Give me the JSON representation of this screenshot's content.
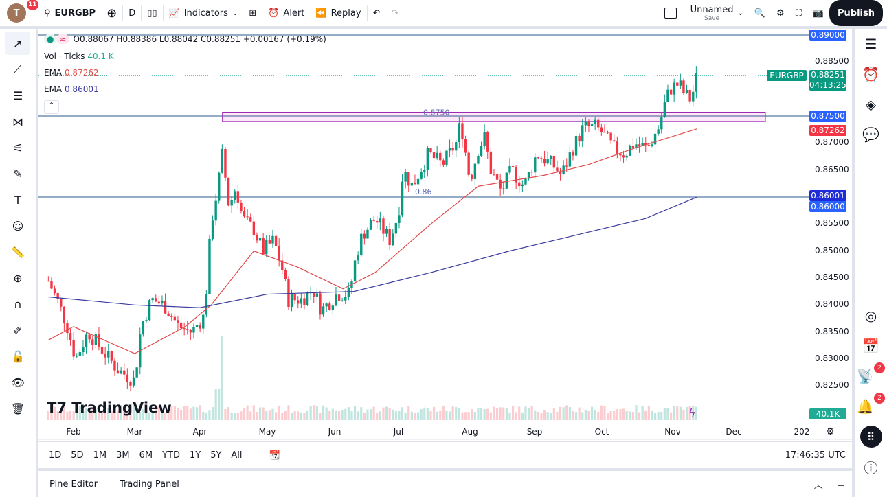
{
  "header": {
    "avatar_letter": "T",
    "notifications": "11",
    "symbol": "EURGBP",
    "interval": "D",
    "indicators": "Indicators",
    "alert": "Alert",
    "replay": "Replay",
    "layout_name": "Unnamed",
    "layout_save": "Save",
    "publish": "Publish"
  },
  "legend": {
    "ohlc": "O0.88067 H0.88386 L0.88042 C0.88251 +0.00167 (+0.19%)",
    "vol_label": "Vol · Ticks",
    "vol_value": "40.1 K",
    "ema1_label": "EMA",
    "ema1_value": "0.87262",
    "ema2_label": "EMA",
    "ema2_value": "0.86001"
  },
  "price_axis": {
    "ticks": [
      "0.88500",
      "0.87000",
      "0.86500",
      "0.85500",
      "0.85000",
      "0.84500",
      "0.84000",
      "0.83500",
      "0.83000",
      "0.82500"
    ],
    "labels": {
      "line_top": "0.89000",
      "symbol": "EURGBP",
      "last": "0.88251",
      "countdown": "04:13:25",
      "line_mid": "0.87500",
      "ema1": "0.87262",
      "ema2": "0.86001",
      "line_low": "0.86000",
      "volume": "40.1K"
    }
  },
  "annotations": {
    "rect_label": "0.8750",
    "line_label": "0.86"
  },
  "time_axis": {
    "labels": [
      "Feb",
      "Mar",
      "Apr",
      "May",
      "Jun",
      "Jul",
      "Aug",
      "Sep",
      "Oct",
      "Nov",
      "Dec",
      "202"
    ]
  },
  "range_bar": {
    "items": [
      "1D",
      "5D",
      "1M",
      "3M",
      "6M",
      "YTD",
      "1Y",
      "5Y",
      "All"
    ],
    "clock": "17:46:35 UTC"
  },
  "bottom_panel": {
    "pine": "Pine Editor",
    "trading": "Trading Panel"
  },
  "right_sidebar": {
    "ideas_badge": "2",
    "alerts_badge": "2"
  },
  "logo": "TradingView",
  "colors": {
    "up": "#089981",
    "down": "#f23645",
    "ema_fast": "#e04a4a",
    "ema_slow": "#3b3b9e",
    "hline": "#2a5a8a",
    "accent": "#2962ff"
  },
  "chart_data": {
    "type": "candlestick",
    "symbol": "EURGBP",
    "interval": "D",
    "ylim": [
      0.8225,
      0.8915
    ],
    "closes": [
      [
        "01-16",
        0.8445
      ],
      [
        "01-23",
        0.84
      ],
      [
        "01-28",
        0.836
      ],
      [
        "02-02",
        0.83
      ],
      [
        "02-08",
        0.835
      ],
      [
        "02-14",
        0.832
      ],
      [
        "02-22",
        0.828
      ],
      [
        "03-01",
        0.826
      ],
      [
        "03-04",
        0.836
      ],
      [
        "03-09",
        0.841
      ],
      [
        "03-15",
        0.84
      ],
      [
        "03-22",
        0.836
      ],
      [
        "03-28",
        0.835
      ],
      [
        "04-03",
        0.838
      ],
      [
        "04-06",
        0.855
      ],
      [
        "04-09",
        0.862
      ],
      [
        "04-11",
        0.868
      ],
      [
        "04-14",
        0.858
      ],
      [
        "04-17",
        0.862
      ],
      [
        "04-20",
        0.856
      ],
      [
        "04-25",
        0.854
      ],
      [
        "04-29",
        0.85
      ],
      [
        "05-04",
        0.852
      ],
      [
        "05-09",
        0.845
      ],
      [
        "05-10",
        0.841
      ],
      [
        "05-17",
        0.841
      ],
      [
        "05-22",
        0.843
      ],
      [
        "05-26",
        0.839
      ],
      [
        "06-02",
        0.842
      ],
      [
        "06-08",
        0.842
      ],
      [
        "06-11",
        0.849
      ],
      [
        "06-14",
        0.853
      ],
      [
        "06-20",
        0.856
      ],
      [
        "06-27",
        0.852
      ],
      [
        "07-01",
        0.857
      ],
      [
        "07-03",
        0.865
      ],
      [
        "07-07",
        0.862
      ],
      [
        "07-14",
        0.868
      ],
      [
        "07-20",
        0.866
      ],
      [
        "07-26",
        0.87
      ],
      [
        "07-28",
        0.874
      ],
      [
        "08-01",
        0.863
      ],
      [
        "08-05",
        0.869
      ],
      [
        "08-08",
        0.871
      ],
      [
        "08-11",
        0.865
      ],
      [
        "08-16",
        0.861
      ],
      [
        "08-21",
        0.865
      ],
      [
        "08-27",
        0.862
      ],
      [
        "09-02",
        0.868
      ],
      [
        "09-09",
        0.866
      ],
      [
        "09-13",
        0.864
      ],
      [
        "09-18",
        0.869
      ],
      [
        "09-23",
        0.873
      ],
      [
        "09-28",
        0.873
      ],
      [
        "10-01",
        0.872
      ],
      [
        "10-06",
        0.869
      ],
      [
        "10-11",
        0.868
      ],
      [
        "10-15",
        0.87
      ],
      [
        "10-21",
        0.869
      ],
      [
        "10-26",
        0.873
      ],
      [
        "10-29",
        0.878
      ],
      [
        "10-31",
        0.88
      ],
      [
        "11-04",
        0.881
      ],
      [
        "11-07",
        0.879
      ],
      [
        "11-10",
        0.878
      ],
      [
        "11-13",
        0.88251
      ]
    ],
    "ema_fast": [
      [
        "01-16",
        0.8335
      ],
      [
        "02-01",
        0.836
      ],
      [
        "03-01",
        0.831
      ],
      [
        "03-25",
        0.836
      ],
      [
        "04-06",
        0.84
      ],
      [
        "04-25",
        0.85
      ],
      [
        "05-15",
        0.847
      ],
      [
        "06-05",
        0.843
      ],
      [
        "06-20",
        0.846
      ],
      [
        "07-15",
        0.855
      ],
      [
        "08-05",
        0.862
      ],
      [
        "09-05",
        0.864
      ],
      [
        "09-25",
        0.866
      ],
      [
        "10-15",
        0.869
      ],
      [
        "11-13",
        0.87262
      ]
    ],
    "ema_slow": [
      [
        "01-16",
        0.8415
      ],
      [
        "03-01",
        0.84
      ],
      [
        "04-01",
        0.8395
      ],
      [
        "05-01",
        0.842
      ],
      [
        "06-10",
        0.8425
      ],
      [
        "07-15",
        0.846
      ],
      [
        "08-20",
        0.85
      ],
      [
        "09-20",
        0.853
      ],
      [
        "10-20",
        0.856
      ],
      [
        "11-13",
        0.86001
      ]
    ],
    "hlines": [
      0.89,
      0.875,
      0.86
    ],
    "rectangle": {
      "from": "04-11",
      "to": "12-15",
      "top": 0.8757,
      "bottom": 0.874
    }
  }
}
